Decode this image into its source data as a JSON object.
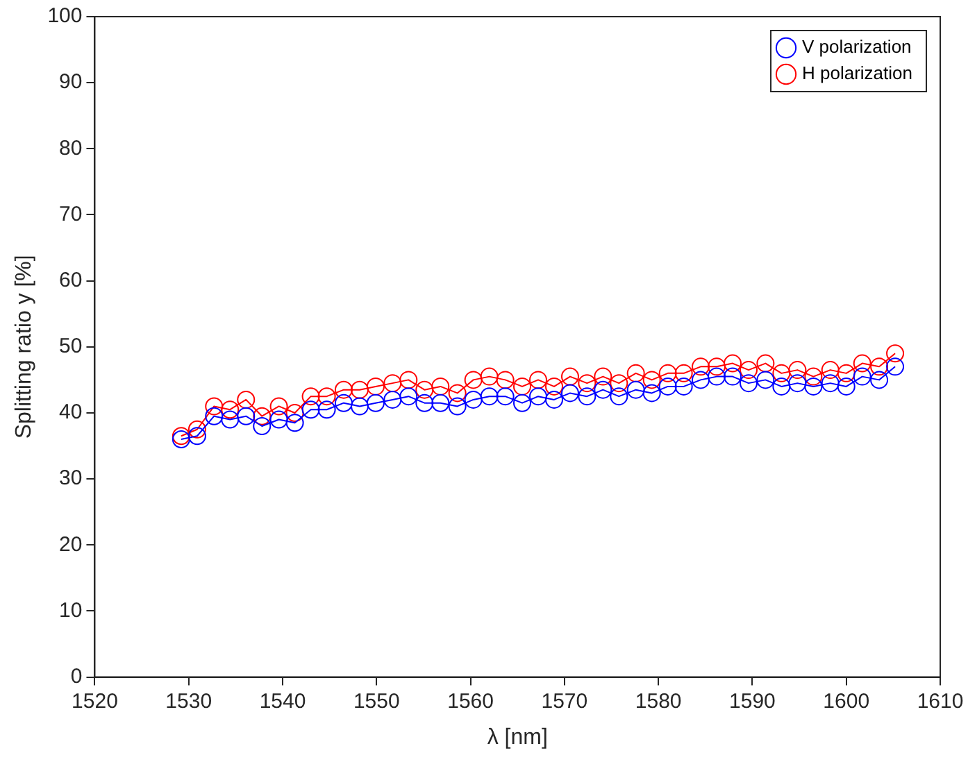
{
  "chart_data": {
    "type": "line",
    "xlabel": "λ [nm]",
    "ylabel": "Splitting ratio y [%]",
    "x": [
      1529.2,
      1530.9,
      1532.7,
      1534.4,
      1536.1,
      1537.8,
      1539.6,
      1541.3,
      1543.0,
      1544.7,
      1546.5,
      1548.2,
      1549.9,
      1551.7,
      1553.4,
      1555.1,
      1556.8,
      1558.6,
      1560.3,
      1562.0,
      1563.7,
      1565.5,
      1567.2,
      1568.9,
      1570.6,
      1572.4,
      1574.1,
      1575.8,
      1577.6,
      1579.3,
      1581.0,
      1582.7,
      1584.5,
      1586.2,
      1587.9,
      1589.6,
      1591.4,
      1593.1,
      1594.8,
      1596.5,
      1598.3,
      1600.0,
      1601.7,
      1603.5,
      1605.2
    ],
    "series": [
      {
        "name": "V polarization",
        "color": "#0000ff",
        "values": [
          36,
          36.5,
          39.5,
          39,
          39.5,
          38,
          39,
          38.5,
          40.5,
          40.5,
          41.5,
          41,
          41.5,
          42,
          42.5,
          41.5,
          41.5,
          41,
          42,
          42.5,
          42.5,
          41.5,
          42.5,
          42,
          43,
          42.5,
          43.5,
          42.5,
          43.5,
          43,
          44,
          44,
          45,
          45.5,
          45.5,
          44.5,
          45,
          44,
          44.5,
          44,
          44.5,
          44,
          45.5,
          45,
          47
        ]
      },
      {
        "name": "H polarization",
        "color": "#ff0000",
        "values": [
          36.5,
          37.5,
          41,
          40.5,
          42,
          39.5,
          41,
          40,
          42.5,
          42.5,
          43.5,
          43.5,
          44,
          44.5,
          45,
          43.5,
          44,
          43,
          45,
          45.5,
          45,
          44,
          45,
          44,
          45.5,
          44.5,
          45.5,
          44.5,
          46,
          45,
          46,
          46,
          47,
          47,
          47.5,
          46.5,
          47.5,
          46,
          46.5,
          45.5,
          46.5,
          46,
          47.5,
          47,
          49
        ]
      }
    ],
    "xlim": [
      1520,
      1610
    ],
    "xticks": [
      1520,
      1530,
      1540,
      1550,
      1560,
      1570,
      1580,
      1590,
      1600,
      1610
    ],
    "ylim": [
      0,
      100
    ],
    "yticks": [
      0,
      10,
      20,
      30,
      40,
      50,
      60,
      70,
      80,
      90,
      100
    ],
    "grid": false,
    "legend": "top right",
    "marker": "circle",
    "line_style": "solid"
  }
}
